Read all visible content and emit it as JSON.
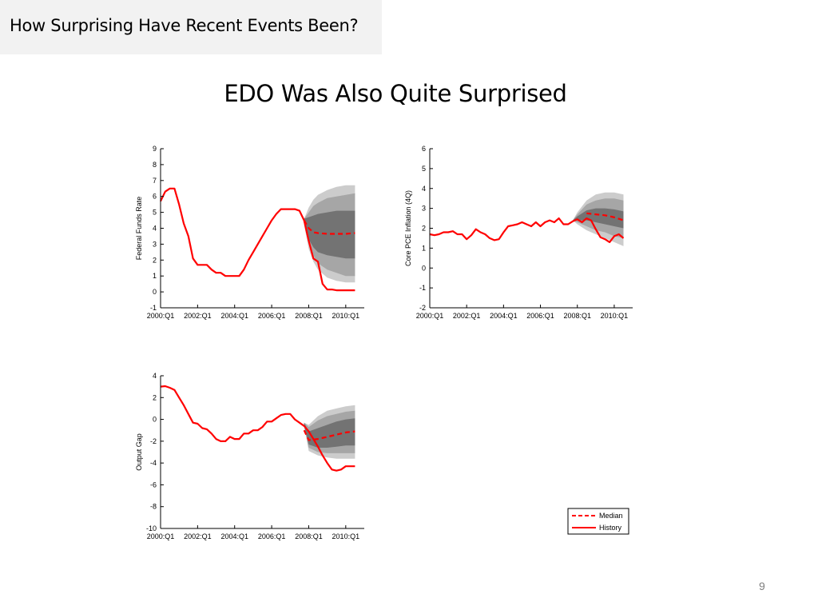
{
  "slide": {
    "header_title": "How Surprising Have Recent Events Been?",
    "title": "EDO Was Also Quite Surprised",
    "page_number": "9"
  },
  "legend": {
    "entries": [
      {
        "label": "Median",
        "style": "dashed",
        "color": "#ff0000"
      },
      {
        "label": "History",
        "style": "solid",
        "color": "#ff0000"
      }
    ]
  },
  "colors": {
    "history": "#ff0000",
    "median": "#ff0000",
    "band_outer": "#cccccc",
    "band_middle": "#a6a6a6",
    "band_inner": "#737373"
  },
  "chart_data": [
    {
      "type": "line",
      "ylabel": "Federal Funds Rate",
      "xlim": [
        2000.0,
        2011.0
      ],
      "ylim": [
        -1,
        9
      ],
      "yticks": [
        "-1",
        "0",
        "1",
        "2",
        "3",
        "4",
        "5",
        "6",
        "7",
        "8",
        "9"
      ],
      "xticks": [
        {
          "label": "2000:Q1",
          "x": 2000.0
        },
        {
          "label": "2002:Q1",
          "x": 2002.0
        },
        {
          "label": "2004:Q1",
          "x": 2004.0
        },
        {
          "label": "2006:Q1",
          "x": 2006.0
        },
        {
          "label": "2008:Q1",
          "x": 2008.0
        },
        {
          "label": "2010:Q1",
          "x": 2010.0
        }
      ],
      "series": [
        {
          "name": "History",
          "x": [
            2000.0,
            2000.25,
            2000.5,
            2000.75,
            2001.0,
            2001.25,
            2001.5,
            2001.75,
            2002.0,
            2002.25,
            2002.5,
            2002.75,
            2003.0,
            2003.25,
            2003.5,
            2003.75,
            2004.0,
            2004.25,
            2004.5,
            2004.75,
            2005.0,
            2005.25,
            2005.5,
            2005.75,
            2006.0,
            2006.25,
            2006.5,
            2006.75,
            2007.0,
            2007.25,
            2007.5,
            2007.75,
            2008.0,
            2008.25,
            2008.5,
            2008.75,
            2009.0,
            2009.25,
            2009.5,
            2009.75,
            2010.0,
            2010.25,
            2010.5
          ],
          "y": [
            5.7,
            6.3,
            6.5,
            6.5,
            5.5,
            4.3,
            3.5,
            2.1,
            1.7,
            1.7,
            1.7,
            1.4,
            1.2,
            1.2,
            1.0,
            1.0,
            1.0,
            1.0,
            1.4,
            2.0,
            2.5,
            3.0,
            3.5,
            4.0,
            4.5,
            4.9,
            5.2,
            5.2,
            5.2,
            5.2,
            5.1,
            4.5,
            3.2,
            2.1,
            1.9,
            0.5,
            0.15,
            0.15,
            0.1,
            0.1,
            0.1,
            0.1,
            0.1
          ]
        },
        {
          "name": "Median",
          "x": [
            2007.75,
            2008.0,
            2008.25,
            2008.5,
            2009.0,
            2009.5,
            2010.0,
            2010.5
          ],
          "y": [
            4.5,
            4.0,
            3.75,
            3.7,
            3.65,
            3.65,
            3.65,
            3.7
          ]
        }
      ],
      "bands": {
        "x": [
          2007.75,
          2008.0,
          2008.25,
          2008.5,
          2009.0,
          2009.5,
          2010.0,
          2010.5
        ],
        "outer_low": [
          4.2,
          2.7,
          1.9,
          1.4,
          0.9,
          0.7,
          0.6,
          0.6
        ],
        "outer_high": [
          4.6,
          5.3,
          5.8,
          6.1,
          6.4,
          6.6,
          6.7,
          6.7
        ],
        "middle_low": [
          4.3,
          3.0,
          2.3,
          1.8,
          1.4,
          1.2,
          1.0,
          1.0
        ],
        "middle_high": [
          4.6,
          5.0,
          5.4,
          5.6,
          5.9,
          6.0,
          6.1,
          6.2
        ],
        "inner_low": [
          4.4,
          3.3,
          2.8,
          2.5,
          2.3,
          2.2,
          2.1,
          2.1
        ],
        "inner_high": [
          4.6,
          4.7,
          4.8,
          4.9,
          5.0,
          5.1,
          5.1,
          5.1
        ]
      }
    },
    {
      "type": "line",
      "ylabel": "Core PCE Inflation (4Q)",
      "xlim": [
        2000.0,
        2011.0
      ],
      "ylim": [
        -2,
        6
      ],
      "yticks": [
        "-2",
        "-1",
        "0",
        "1",
        "2",
        "3",
        "4",
        "5",
        "6"
      ],
      "xticks": [
        {
          "label": "2000:Q1",
          "x": 2000.0
        },
        {
          "label": "2002:Q1",
          "x": 2002.0
        },
        {
          "label": "2004:Q1",
          "x": 2004.0
        },
        {
          "label": "2006:Q1",
          "x": 2006.0
        },
        {
          "label": "2008:Q1",
          "x": 2008.0
        },
        {
          "label": "2010:Q1",
          "x": 2010.0
        }
      ],
      "series": [
        {
          "name": "History",
          "x": [
            2000.0,
            2000.25,
            2000.5,
            2000.75,
            2001.0,
            2001.25,
            2001.5,
            2001.75,
            2002.0,
            2002.25,
            2002.5,
            2002.75,
            2003.0,
            2003.25,
            2003.5,
            2003.75,
            2004.0,
            2004.25,
            2004.5,
            2004.75,
            2005.0,
            2005.25,
            2005.5,
            2005.75,
            2006.0,
            2006.25,
            2006.5,
            2006.75,
            2007.0,
            2007.25,
            2007.5,
            2007.75,
            2008.0,
            2008.25,
            2008.5,
            2008.75,
            2009.0,
            2009.25,
            2009.5,
            2009.75,
            2010.0,
            2010.25,
            2010.5
          ],
          "y": [
            1.7,
            1.65,
            1.7,
            1.8,
            1.8,
            1.85,
            1.7,
            1.7,
            1.45,
            1.65,
            1.95,
            1.8,
            1.7,
            1.5,
            1.4,
            1.45,
            1.8,
            2.1,
            2.15,
            2.2,
            2.3,
            2.2,
            2.1,
            2.3,
            2.1,
            2.3,
            2.4,
            2.3,
            2.5,
            2.2,
            2.2,
            2.35,
            2.45,
            2.3,
            2.5,
            2.4,
            1.95,
            1.55,
            1.45,
            1.3,
            1.6,
            1.7,
            1.5
          ]
        },
        {
          "name": "Median",
          "x": [
            2008.5,
            2009.0,
            2009.5,
            2010.0,
            2010.5
          ],
          "y": [
            2.75,
            2.7,
            2.65,
            2.55,
            2.4
          ]
        }
      ],
      "bands": {
        "x": [
          2007.75,
          2008.0,
          2008.5,
          2009.0,
          2009.5,
          2010.0,
          2010.5
        ],
        "outer_low": [
          2.4,
          2.2,
          1.9,
          1.7,
          1.5,
          1.3,
          1.1
        ],
        "outer_high": [
          2.4,
          2.8,
          3.4,
          3.7,
          3.8,
          3.8,
          3.7
        ],
        "middle_low": [
          2.4,
          2.3,
          2.1,
          1.9,
          1.8,
          1.6,
          1.5
        ],
        "middle_high": [
          2.4,
          2.7,
          3.2,
          3.4,
          3.5,
          3.5,
          3.4
        ],
        "inner_low": [
          2.4,
          2.4,
          2.4,
          2.3,
          2.2,
          2.1,
          2.0
        ],
        "inner_high": [
          2.4,
          2.6,
          2.9,
          3.0,
          3.0,
          2.95,
          2.85
        ]
      }
    },
    {
      "type": "line",
      "ylabel": "Output Gap",
      "xlim": [
        2000.0,
        2011.0
      ],
      "ylim": [
        -10,
        4
      ],
      "yticks": [
        "-10",
        "-8",
        "-6",
        "-4",
        "-2",
        "0",
        "2",
        "4"
      ],
      "xticks": [
        {
          "label": "2000:Q1",
          "x": 2000.0
        },
        {
          "label": "2002:Q1",
          "x": 2002.0
        },
        {
          "label": "2004:Q1",
          "x": 2004.0
        },
        {
          "label": "2006:Q1",
          "x": 2006.0
        },
        {
          "label": "2008:Q1",
          "x": 2008.0
        },
        {
          "label": "2010:Q1",
          "x": 2010.0
        }
      ],
      "series": [
        {
          "name": "History",
          "x": [
            2000.0,
            2000.25,
            2000.5,
            2000.75,
            2001.0,
            2001.25,
            2001.5,
            2001.75,
            2002.0,
            2002.25,
            2002.5,
            2002.75,
            2003.0,
            2003.25,
            2003.5,
            2003.75,
            2004.0,
            2004.25,
            2004.5,
            2004.75,
            2005.0,
            2005.25,
            2005.5,
            2005.75,
            2006.0,
            2006.25,
            2006.5,
            2006.75,
            2007.0,
            2007.25,
            2007.5,
            2007.75,
            2008.0,
            2008.25,
            2008.5,
            2008.75,
            2009.0,
            2009.25,
            2009.5,
            2009.75,
            2010.0,
            2010.25,
            2010.5
          ],
          "y": [
            3.0,
            3.05,
            2.9,
            2.7,
            2.0,
            1.3,
            0.5,
            -0.3,
            -0.4,
            -0.8,
            -0.9,
            -1.3,
            -1.8,
            -2.0,
            -2.0,
            -1.6,
            -1.8,
            -1.8,
            -1.3,
            -1.3,
            -1.0,
            -1.0,
            -0.7,
            -0.2,
            -0.2,
            0.1,
            0.4,
            0.5,
            0.5,
            0.0,
            -0.3,
            -0.6,
            -1.1,
            -1.8,
            -2.5,
            -3.3,
            -4.0,
            -4.6,
            -4.7,
            -4.6,
            -4.3,
            -4.3,
            -4.3
          ]
        },
        {
          "name": "Median",
          "x": [
            2007.75,
            2008.0,
            2008.5,
            2009.0,
            2009.5,
            2010.0,
            2010.5
          ],
          "y": [
            -1.0,
            -1.9,
            -1.8,
            -1.6,
            -1.4,
            -1.2,
            -1.1
          ]
        }
      ],
      "bands": {
        "x": [
          2007.75,
          2008.0,
          2008.5,
          2009.0,
          2009.5,
          2010.0,
          2010.5
        ],
        "outer_low": [
          -0.6,
          -2.9,
          -3.3,
          -3.5,
          -3.6,
          -3.6,
          -3.6
        ],
        "outer_high": [
          -0.3,
          -0.5,
          0.3,
          0.8,
          1.0,
          1.2,
          1.3
        ],
        "middle_low": [
          -0.6,
          -2.6,
          -3.0,
          -3.1,
          -3.1,
          -3.1,
          -3.1
        ],
        "middle_high": [
          -0.3,
          -0.7,
          -0.1,
          0.3,
          0.5,
          0.7,
          0.8
        ],
        "inner_low": [
          -0.6,
          -2.3,
          -2.6,
          -2.6,
          -2.5,
          -2.4,
          -2.4
        ],
        "inner_high": [
          -0.3,
          -1.1,
          -0.8,
          -0.5,
          -0.2,
          0.0,
          0.1
        ]
      }
    }
  ]
}
